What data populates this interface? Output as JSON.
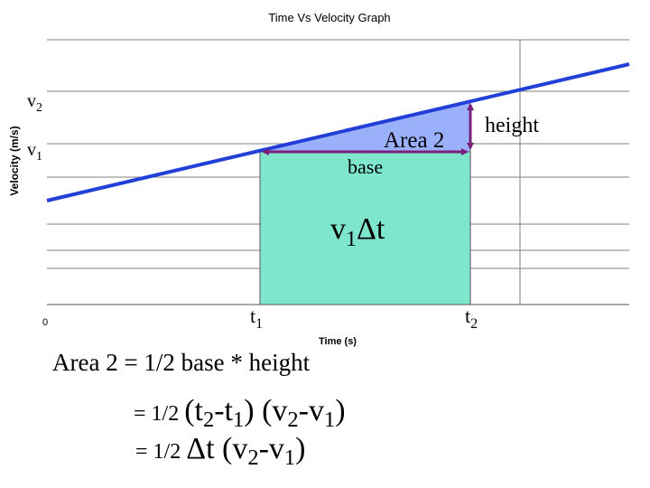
{
  "graph": {
    "title": "Time Vs Velocity Graph",
    "y_label": "Velocity (m/s)",
    "x_label": "Time (s)",
    "origin": "0"
  },
  "labels": {
    "v2": {
      "base": "v",
      "sub": "2"
    },
    "v1": {
      "base": "v",
      "sub": "1"
    },
    "area2": "Area 2",
    "base": "base",
    "height": "height",
    "v1dt": {
      "base": "v",
      "sub": "1",
      "rest": "Δt"
    },
    "t1": {
      "base": "t",
      "sub": "1"
    },
    "t2": {
      "base": "t",
      "sub": "2"
    }
  },
  "equations": {
    "line1": "Area 2 = 1/2 base * height",
    "line2": {
      "prefix": "= 1/2 ",
      "t2": "(t",
      "t2sub": "2",
      "minus_t1": "-t",
      "t1sub": "1",
      "close1": ")",
      "v2": "(v",
      "v2sub": "2",
      "minus_v1": "-v",
      "v1sub": "1",
      "close2": ")"
    },
    "line3": {
      "prefix": "= 1/2 ",
      "dt": "Δt",
      "v2": "(v",
      "v2sub": "2",
      "minus_v1": "-v",
      "v1sub": "1",
      "close": ")"
    }
  },
  "colors": {
    "velocity_line": "#2240d8",
    "rectangle_fill": "#7fe6ce",
    "triangle_fill": "#9bb0fb",
    "arrows": "#7a1f7a"
  }
}
